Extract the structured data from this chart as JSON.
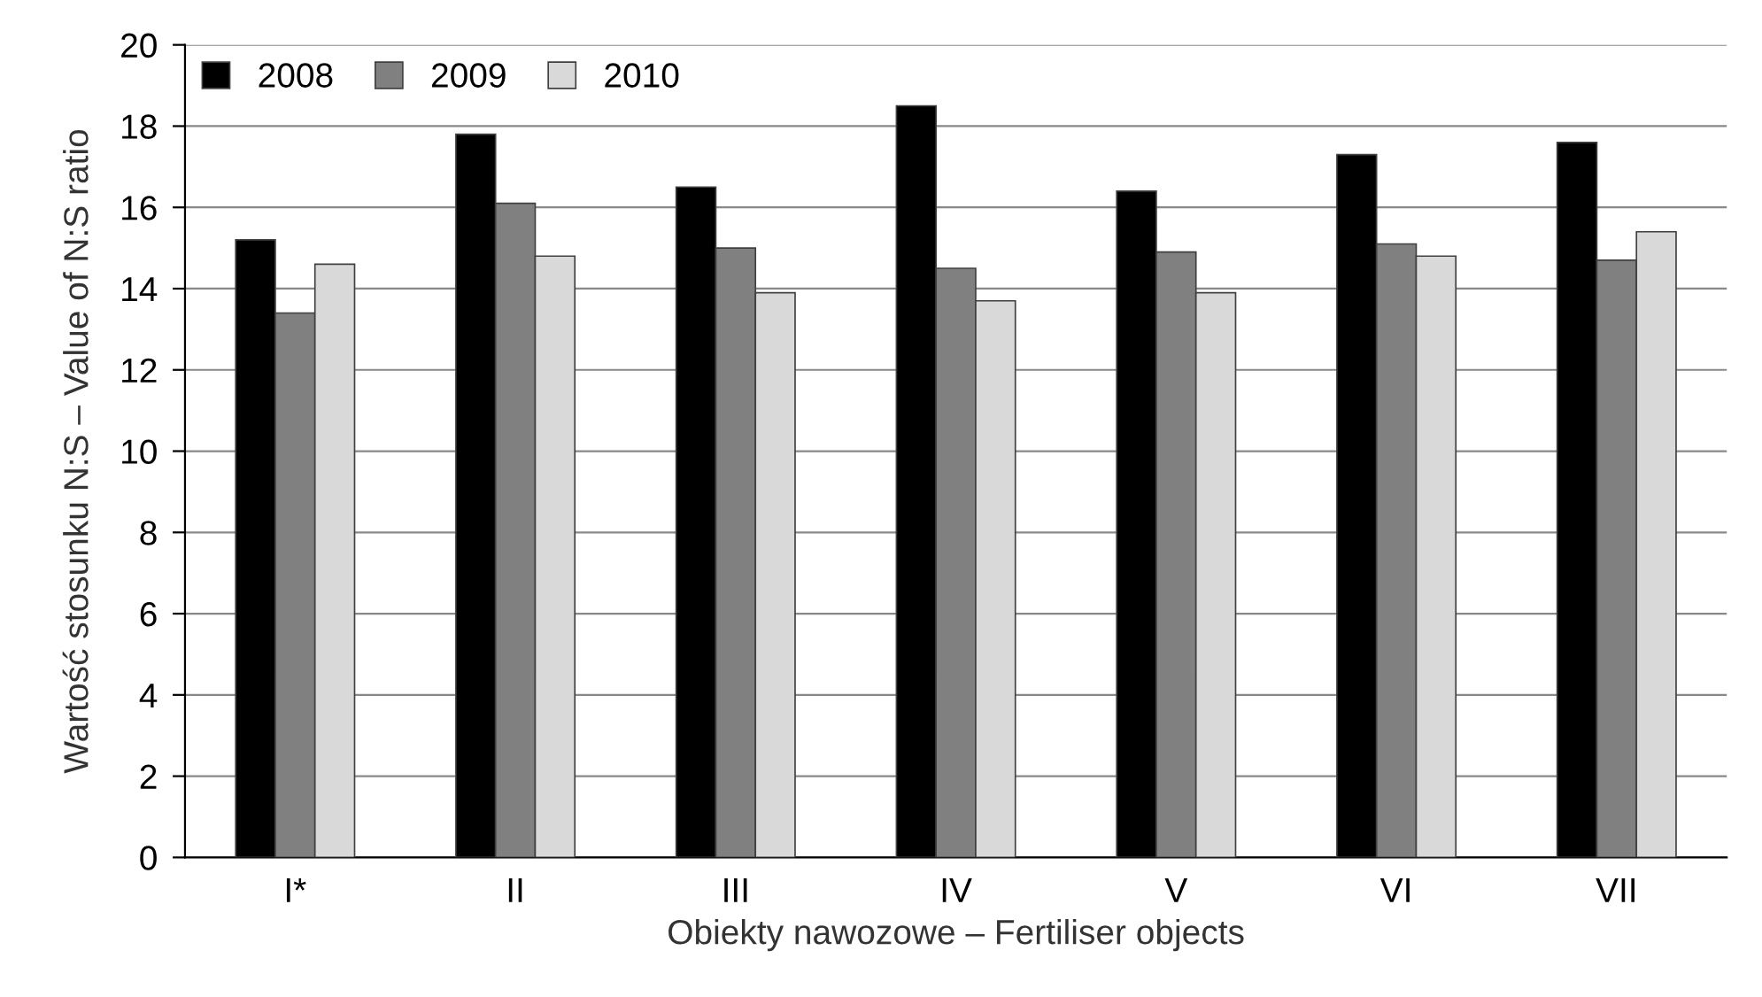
{
  "chart_data": {
    "type": "bar",
    "xlabel": "Obiekty nawozowe – Fertiliser objects",
    "ylabel": "Wartość stosunku N:S – Value of N:S ratio",
    "categories": [
      "I*",
      "II",
      "III",
      "IV",
      "V",
      "VI",
      "VII"
    ],
    "series": [
      {
        "name": "2008",
        "color": "#000000",
        "values": [
          15.2,
          17.8,
          16.5,
          18.5,
          16.4,
          17.3,
          17.6
        ]
      },
      {
        "name": "2009",
        "color": "#808080",
        "values": [
          13.4,
          16.1,
          15.0,
          14.5,
          14.9,
          15.1,
          14.7
        ]
      },
      {
        "name": "2010",
        "color": "#d9d9d9",
        "values": [
          14.6,
          14.8,
          13.9,
          13.7,
          13.9,
          14.8,
          15.4
        ]
      }
    ],
    "ylim": [
      0,
      20
    ],
    "yticks": [
      0,
      2,
      4,
      6,
      8,
      10,
      12,
      14,
      16,
      18,
      20
    ],
    "grid": "y",
    "legend": "top left"
  }
}
